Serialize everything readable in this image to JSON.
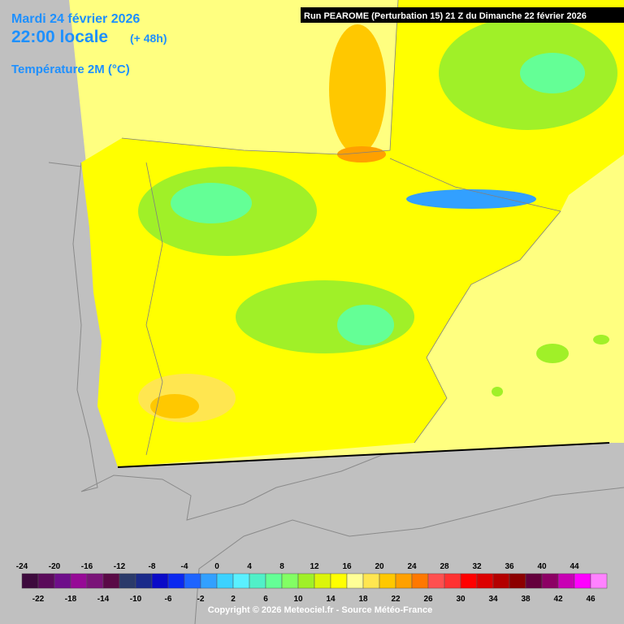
{
  "header": {
    "date": "Mardi 24 février 2026",
    "time": "22:00 locale",
    "lead": "(+ 48h)",
    "parameter": "Température 2M (°C)",
    "run": "Run PEAROME (Perturbation 15) 21 Z du Dimanche 22 février 2026"
  },
  "legend": {
    "values": [
      -24,
      -22,
      -20,
      -18,
      -16,
      -14,
      -12,
      -10,
      -8,
      -6,
      -4,
      -2,
      0,
      2,
      4,
      6,
      8,
      10,
      12,
      14,
      16,
      18,
      20,
      22,
      24,
      26,
      28,
      30,
      32,
      34,
      36,
      38,
      40,
      42,
      44,
      46
    ],
    "colors": [
      "#3d0a3d",
      "#5a0a5a",
      "#6e0e8a",
      "#960a96",
      "#7a1478",
      "#5a0a46",
      "#2a3a6a",
      "#1a2a8a",
      "#0a0ac8",
      "#0a28f0",
      "#1e64ff",
      "#32a0ff",
      "#3cd2ff",
      "#5af0ff",
      "#50f0c8",
      "#64ff96",
      "#82ff64",
      "#a0f028",
      "#dcf50a",
      "#ffff00",
      "#ffff96",
      "#ffe650",
      "#ffc800",
      "#ffa000",
      "#ff7800",
      "#ff5050",
      "#ff3232",
      "#ff0000",
      "#dc0000",
      "#b40000",
      "#8c0000",
      "#64003c",
      "#8c0064",
      "#c800b4",
      "#ff00ff",
      "#ff82ff"
    ]
  },
  "footer": {
    "copyright": "Copyright © 2026 Meteociel.fr - Source Météo-France"
  }
}
